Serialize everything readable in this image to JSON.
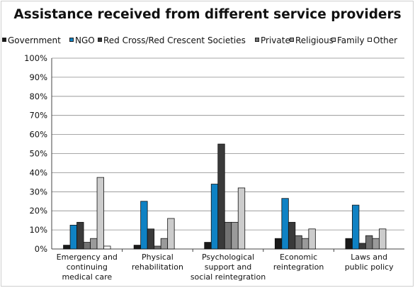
{
  "chart_data": {
    "type": "bar",
    "title": "Assistance received from different service providers",
    "xlabel": "",
    "ylabel": "",
    "ylim": [
      0,
      100
    ],
    "yticks": [
      "0%",
      "10%",
      "20%",
      "30%",
      "40%",
      "50%",
      "60%",
      "70%",
      "80%",
      "90%",
      "100%"
    ],
    "grid": true,
    "legend": "top",
    "categories": [
      [
        "Emergency and",
        "continuing",
        "medical care"
      ],
      [
        "Physical",
        "rehabilitation"
      ],
      [
        "Psychological",
        "support and",
        "social reintegration"
      ],
      [
        "Economic",
        "reintegration"
      ],
      [
        "Laws and",
        "public policy"
      ]
    ],
    "series": [
      {
        "name": "Government",
        "color": "#1a1a1a",
        "values": [
          2,
          2,
          3.5,
          5.5,
          5.5
        ]
      },
      {
        "name": "NGO",
        "color": "#0f82c4",
        "values": [
          12.5,
          25,
          34,
          26.5,
          23
        ]
      },
      {
        "name": "Red Cross/Red Crescent Societies",
        "color": "#3a3a3a",
        "values": [
          14,
          10.5,
          55,
          14,
          3
        ]
      },
      {
        "name": "Private",
        "color": "#727272",
        "values": [
          3.5,
          1.5,
          14,
          7,
          7
        ]
      },
      {
        "name": "Religious",
        "color": "#9a9a9a",
        "values": [
          5.5,
          5.5,
          14,
          5.5,
          5.5
        ]
      },
      {
        "name": "Family",
        "color": "#cccccc",
        "values": [
          37.5,
          16,
          32,
          10.5,
          10.5
        ]
      },
      {
        "name": "Other",
        "color": "#ffffff",
        "values": [
          1.5,
          0,
          0,
          0,
          0
        ]
      }
    ]
  }
}
